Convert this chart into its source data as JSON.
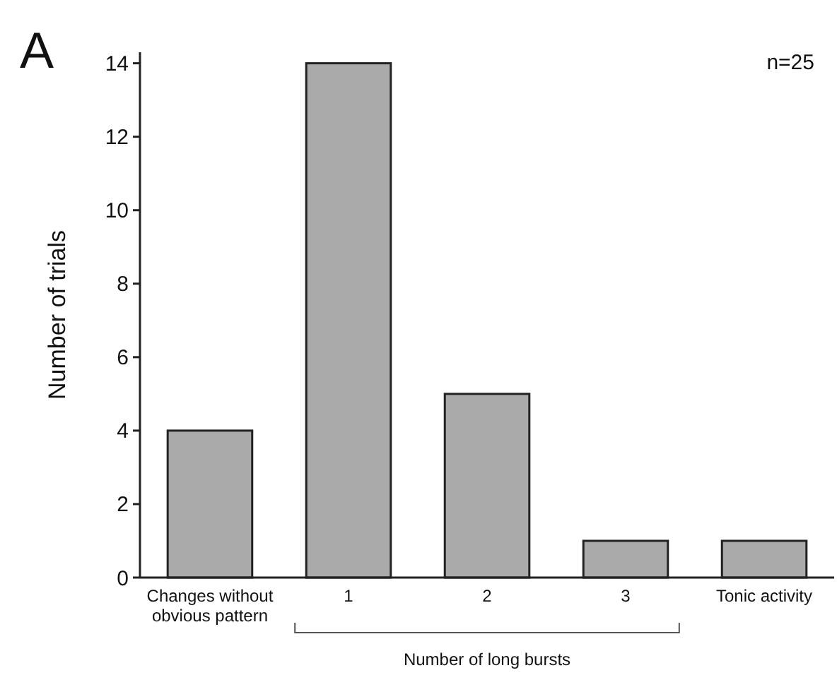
{
  "chart_data": {
    "type": "bar",
    "title": "A",
    "ylabel": "Number of trials",
    "xlabel": "Number of long bursts",
    "categories": [
      "Changes without obvious pattern",
      "1",
      "2",
      "3",
      "Tonic activity"
    ],
    "values": [
      4,
      14,
      5,
      1,
      1
    ],
    "color": "#aaaaaa",
    "ylim": [
      0,
      14.3
    ],
    "yticks": [
      0,
      2,
      4,
      6,
      8,
      10,
      12,
      14
    ],
    "annotations": [
      "n=25"
    ]
  }
}
